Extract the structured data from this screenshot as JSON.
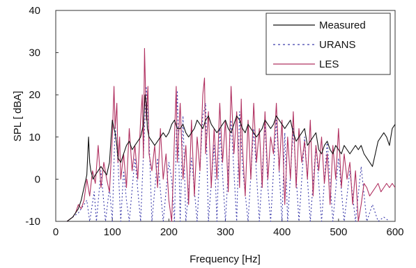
{
  "chart_data": {
    "type": "line",
    "title": "",
    "xlabel": "Frequency [Hz]",
    "ylabel": "SPL [ dBA]",
    "xlim": [
      0,
      600
    ],
    "ylim": [
      -10,
      40
    ],
    "xticks": [
      0,
      100,
      200,
      300,
      400,
      500,
      600
    ],
    "yticks": [
      -10,
      0,
      10,
      20,
      30,
      40
    ],
    "grid": false,
    "legend_position": "top-right",
    "series": [
      {
        "name": "Measured",
        "color": "#111111",
        "style": "solid",
        "x": [
          20,
          30,
          40,
          45,
          50,
          55,
          58,
          60,
          62,
          66,
          70,
          75,
          80,
          85,
          90,
          95,
          98,
          100,
          103,
          105,
          108,
          110,
          115,
          120,
          125,
          130,
          135,
          140,
          145,
          150,
          155,
          158,
          160,
          162,
          165,
          170,
          175,
          180,
          185,
          190,
          195,
          200,
          205,
          210,
          215,
          220,
          225,
          230,
          235,
          240,
          245,
          250,
          255,
          260,
          265,
          270,
          275,
          280,
          285,
          290,
          295,
          300,
          305,
          310,
          315,
          320,
          325,
          330,
          335,
          340,
          345,
          350,
          355,
          360,
          365,
          370,
          375,
          380,
          385,
          390,
          395,
          400,
          405,
          410,
          415,
          420,
          425,
          430,
          435,
          440,
          445,
          450,
          455,
          460,
          465,
          470,
          475,
          480,
          485,
          490,
          495,
          500,
          505,
          510,
          515,
          520,
          525,
          530,
          535,
          540,
          545,
          550,
          555,
          560,
          565,
          570,
          575,
          580,
          585,
          590,
          595,
          600
        ],
        "y": [
          -10,
          -9,
          -7,
          -5,
          -2,
          1,
          10,
          4,
          2,
          0,
          1,
          2,
          3,
          2,
          1,
          4,
          10,
          14,
          12,
          11,
          8,
          5,
          4,
          6,
          8,
          9,
          7,
          8,
          9,
          10,
          13,
          20,
          18,
          12,
          10,
          9,
          8,
          9,
          10,
          11,
          10,
          11,
          13,
          14,
          12,
          12,
          13,
          11,
          10,
          11,
          12,
          14,
          13,
          12,
          14,
          15,
          13,
          12,
          11,
          12,
          13,
          14,
          12,
          11,
          13,
          15,
          14,
          12,
          11,
          13,
          12,
          11,
          10,
          11,
          12,
          14,
          13,
          12,
          13,
          15,
          14,
          13,
          12,
          13,
          14,
          11,
          9,
          10,
          11,
          12,
          8,
          9,
          10,
          11,
          7,
          6,
          8,
          9,
          7,
          6,
          8,
          7,
          6,
          8,
          7,
          6,
          7,
          8,
          7,
          8,
          6,
          5,
          4,
          3,
          6,
          9,
          10,
          11,
          10,
          8,
          12,
          13
        ]
      },
      {
        "name": "URANS",
        "color": "#3a3aaa",
        "style": "dotted",
        "x": [
          20,
          40,
          55,
          60,
          68,
          72,
          80,
          88,
          95,
          100,
          105,
          110,
          115,
          120,
          125,
          130,
          140,
          150,
          160,
          165,
          170,
          180,
          190,
          200,
          205,
          210,
          215,
          220,
          225,
          230,
          240,
          250,
          260,
          265,
          270,
          280,
          285,
          290,
          300,
          310,
          320,
          325,
          330,
          340,
          350,
          360,
          370,
          375,
          380,
          390,
          400,
          405,
          410,
          420,
          430,
          440,
          450,
          460,
          470,
          480,
          490,
          500,
          510,
          520,
          530,
          540,
          550,
          560,
          570,
          580,
          590
        ],
        "y": [
          -10,
          -8,
          -5,
          -10,
          -3,
          -10,
          2,
          -10,
          -2,
          -10,
          13,
          4,
          -10,
          2,
          -5,
          -10,
          5,
          -10,
          22,
          10,
          -10,
          5,
          -10,
          4,
          0,
          -10,
          21,
          -10,
          15,
          -10,
          5,
          -10,
          15,
          18,
          -10,
          8,
          -10,
          12,
          -10,
          14,
          -10,
          16,
          3,
          -10,
          12,
          -10,
          13,
          -2,
          -10,
          14,
          -10,
          11,
          -10,
          12,
          -10,
          10,
          -10,
          8,
          -10,
          9,
          -10,
          5,
          -10,
          2,
          -10,
          3,
          -10,
          -6,
          -10,
          -9,
          -10
        ]
      },
      {
        "name": "LES",
        "color": "#b03060",
        "style": "solid",
        "x": [
          20,
          30,
          35,
          40,
          45,
          50,
          55,
          60,
          65,
          70,
          75,
          80,
          85,
          90,
          95,
          100,
          103,
          105,
          108,
          110,
          113,
          115,
          120,
          125,
          130,
          135,
          140,
          145,
          150,
          153,
          155,
          157,
          160,
          163,
          165,
          170,
          175,
          180,
          185,
          190,
          195,
          200,
          205,
          210,
          213,
          215,
          220,
          225,
          230,
          235,
          240,
          245,
          250,
          255,
          260,
          263,
          265,
          270,
          275,
          280,
          285,
          290,
          295,
          300,
          305,
          310,
          315,
          320,
          325,
          328,
          330,
          335,
          340,
          345,
          350,
          355,
          360,
          365,
          370,
          375,
          380,
          385,
          390,
          395,
          400,
          405,
          410,
          415,
          420,
          425,
          430,
          435,
          440,
          445,
          450,
          455,
          460,
          465,
          470,
          475,
          480,
          485,
          490,
          495,
          500,
          505,
          510,
          515,
          520,
          525,
          530,
          535,
          540,
          545,
          550,
          555,
          560,
          565,
          570,
          575,
          580,
          585,
          590,
          595,
          600
        ],
        "y": [
          -10,
          -9,
          -8,
          -6,
          -7,
          -5,
          0,
          -4,
          2,
          -1,
          8,
          -2,
          4,
          0,
          -3,
          10,
          22,
          12,
          18,
          4,
          10,
          0,
          6,
          -2,
          12,
          2,
          8,
          0,
          14,
          20,
          5,
          31,
          14,
          22,
          6,
          2,
          8,
          -2,
          12,
          0,
          6,
          -5,
          -10,
          10,
          22,
          4,
          18,
          0,
          8,
          -6,
          14,
          -4,
          10,
          2,
          20,
          24,
          6,
          16,
          -2,
          12,
          0,
          18,
          4,
          14,
          -3,
          22,
          6,
          16,
          -2,
          19,
          8,
          -4,
          14,
          0,
          18,
          4,
          12,
          -2,
          16,
          0,
          10,
          6,
          18,
          2,
          14,
          -6,
          10,
          0,
          16,
          -2,
          12,
          4,
          9,
          0,
          14,
          -4,
          8,
          2,
          10,
          -1,
          6,
          -6,
          8,
          0,
          12,
          -2,
          6,
          0,
          4,
          -6,
          2,
          -10,
          -6,
          -1,
          -2,
          -4,
          -3,
          -2,
          -1,
          -3,
          -2,
          -1,
          -2,
          -1,
          -2
        ]
      }
    ]
  }
}
